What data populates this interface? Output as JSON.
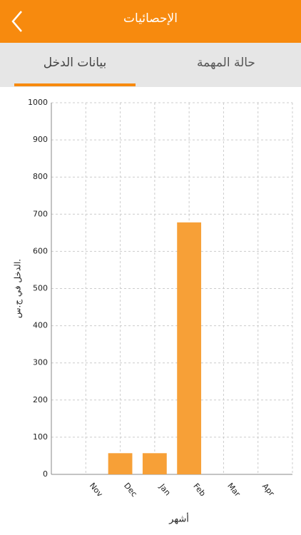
{
  "header": {
    "title": "الإحصائيات"
  },
  "tabs": [
    "بيانات الدخل",
    "حالة المهمة"
  ],
  "chart_data": {
    "type": "bar",
    "x_label": "أشهر",
    "y_label": "الدخل في ج.س.",
    "categories": [
      "Nov",
      "Dec",
      "Jan",
      "Feb",
      "Mar",
      "Apr"
    ],
    "values": [
      0,
      57,
      57,
      678,
      0,
      0
    ],
    "color": "#f7a037",
    "ylim": [
      0,
      1000
    ],
    "yticks": [
      0,
      100,
      200,
      300,
      400,
      500,
      600,
      700,
      800,
      900,
      1000
    ],
    "grid": true
  }
}
